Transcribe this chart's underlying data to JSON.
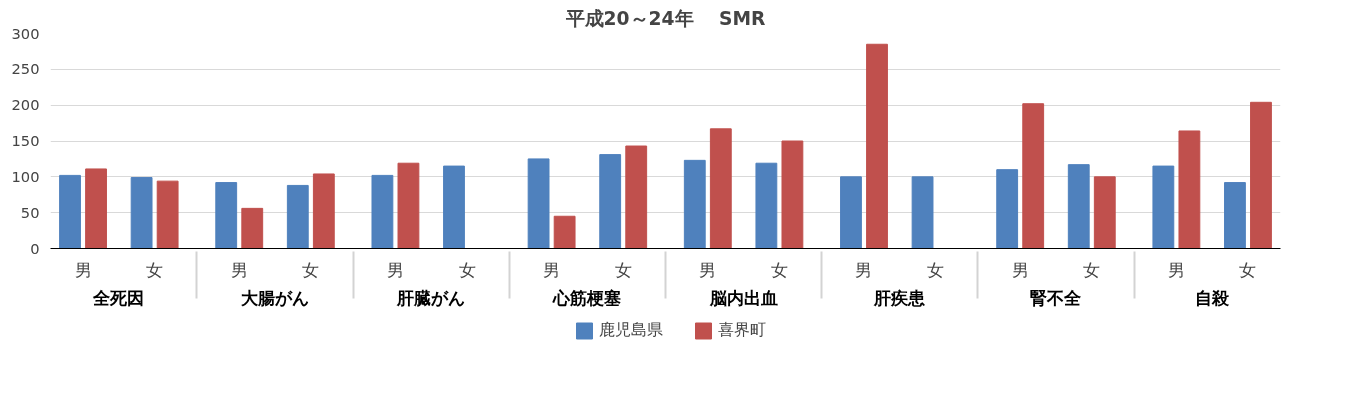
{
  "chart_data": {
    "type": "bar",
    "title": "平成20～24年　 SMR",
    "categories": [
      "男",
      "女",
      "男",
      "女",
      "男",
      "女",
      "男",
      "女",
      "男",
      "女",
      "男",
      "女",
      "男",
      "女",
      "男",
      "女"
    ],
    "annotations": [
      "全死因",
      "大腸がん",
      "肝臓がん",
      "心筋梗塞",
      "脳内出血",
      "肝疾患",
      "腎不全",
      "自殺"
    ],
    "series": [
      {
        "name": "鹿児島県",
        "color": "#4f81bd",
        "values": [
          102,
          99,
          92,
          88,
          102,
          115,
          125,
          131,
          123,
          119,
          100,
          100,
          110,
          117,
          115,
          92
        ]
      },
      {
        "name": "喜界町",
        "color": "#c0504d",
        "values": [
          111,
          94,
          56,
          104,
          119,
          null,
          45,
          143,
          167,
          150,
          285,
          null,
          202,
          100,
          164,
          204
        ]
      }
    ],
    "ylim": [
      0,
      300
    ],
    "yticks": [
      0,
      50,
      100,
      150,
      200,
      250,
      300
    ],
    "grid": "y",
    "legend": "bottom"
  }
}
